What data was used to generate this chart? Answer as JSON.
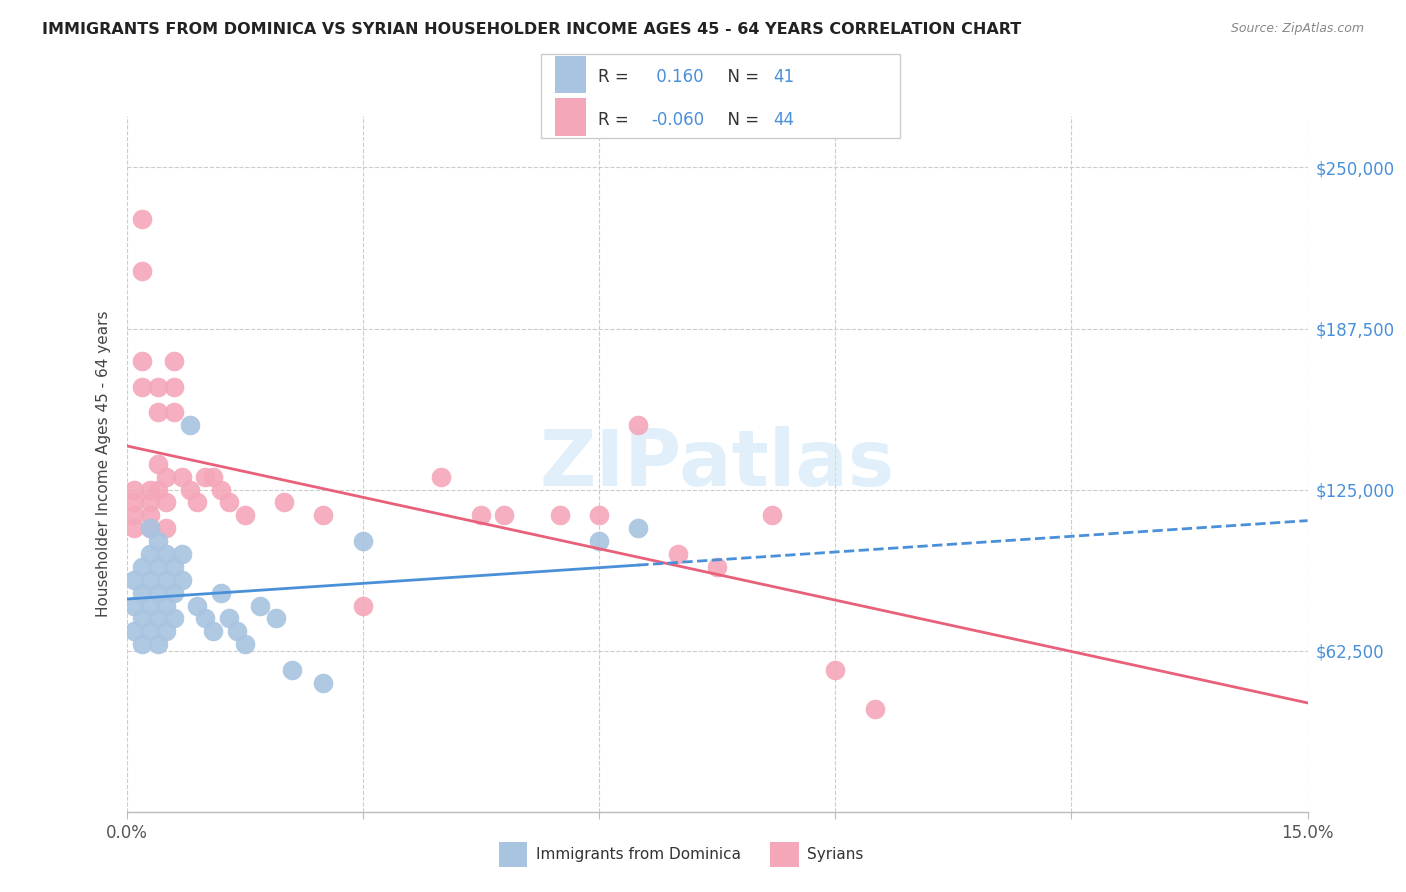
{
  "title": "IMMIGRANTS FROM DOMINICA VS SYRIAN HOUSEHOLDER INCOME AGES 45 - 64 YEARS CORRELATION CHART",
  "source": "Source: ZipAtlas.com",
  "ylabel": "Householder Income Ages 45 - 64 years",
  "ytick_labels": [
    "$62,500",
    "$125,000",
    "$187,500",
    "$250,000"
  ],
  "ytick_values": [
    62500,
    125000,
    187500,
    250000
  ],
  "ymin": 0,
  "ymax": 270000,
  "xmin": 0.0,
  "xmax": 0.15,
  "dominica_color": "#a8c4e0",
  "syrian_color": "#f4a7b9",
  "dominica_line_color": "#4a90d9",
  "syrian_line_color": "#e8607a",
  "dominica_r": 0.16,
  "dominica_n": 41,
  "syrian_r": -0.06,
  "syrian_n": 44,
  "legend_label_dominica": "Immigrants from Dominica",
  "legend_label_syrian": "Syrians",
  "watermark": "ZIPatlas",
  "dominica_x": [
    0.001,
    0.001,
    0.001,
    0.002,
    0.002,
    0.002,
    0.002,
    0.003,
    0.003,
    0.003,
    0.003,
    0.003,
    0.004,
    0.004,
    0.004,
    0.004,
    0.004,
    0.005,
    0.005,
    0.005,
    0.005,
    0.006,
    0.006,
    0.006,
    0.007,
    0.007,
    0.008,
    0.009,
    0.01,
    0.011,
    0.012,
    0.013,
    0.014,
    0.015,
    0.017,
    0.019,
    0.021,
    0.025,
    0.03,
    0.06,
    0.065
  ],
  "dominica_y": [
    90000,
    80000,
    70000,
    95000,
    85000,
    75000,
    65000,
    110000,
    100000,
    90000,
    80000,
    70000,
    105000,
    95000,
    85000,
    75000,
    65000,
    100000,
    90000,
    80000,
    70000,
    95000,
    85000,
    75000,
    100000,
    90000,
    150000,
    80000,
    75000,
    70000,
    85000,
    75000,
    70000,
    65000,
    80000,
    75000,
    55000,
    50000,
    105000,
    105000,
    110000
  ],
  "syrian_x": [
    0.001,
    0.001,
    0.001,
    0.001,
    0.002,
    0.002,
    0.002,
    0.002,
    0.003,
    0.003,
    0.003,
    0.003,
    0.004,
    0.004,
    0.004,
    0.004,
    0.005,
    0.005,
    0.005,
    0.006,
    0.006,
    0.006,
    0.007,
    0.008,
    0.009,
    0.01,
    0.011,
    0.012,
    0.013,
    0.015,
    0.02,
    0.025,
    0.03,
    0.04,
    0.045,
    0.048,
    0.055,
    0.06,
    0.065,
    0.07,
    0.075,
    0.082,
    0.09,
    0.095
  ],
  "syrian_y": [
    125000,
    120000,
    115000,
    110000,
    230000,
    210000,
    175000,
    165000,
    125000,
    120000,
    115000,
    110000,
    165000,
    155000,
    135000,
    125000,
    130000,
    120000,
    110000,
    175000,
    165000,
    155000,
    130000,
    125000,
    120000,
    130000,
    130000,
    125000,
    120000,
    115000,
    120000,
    115000,
    80000,
    130000,
    115000,
    115000,
    115000,
    115000,
    150000,
    100000,
    95000,
    115000,
    55000,
    40000
  ]
}
